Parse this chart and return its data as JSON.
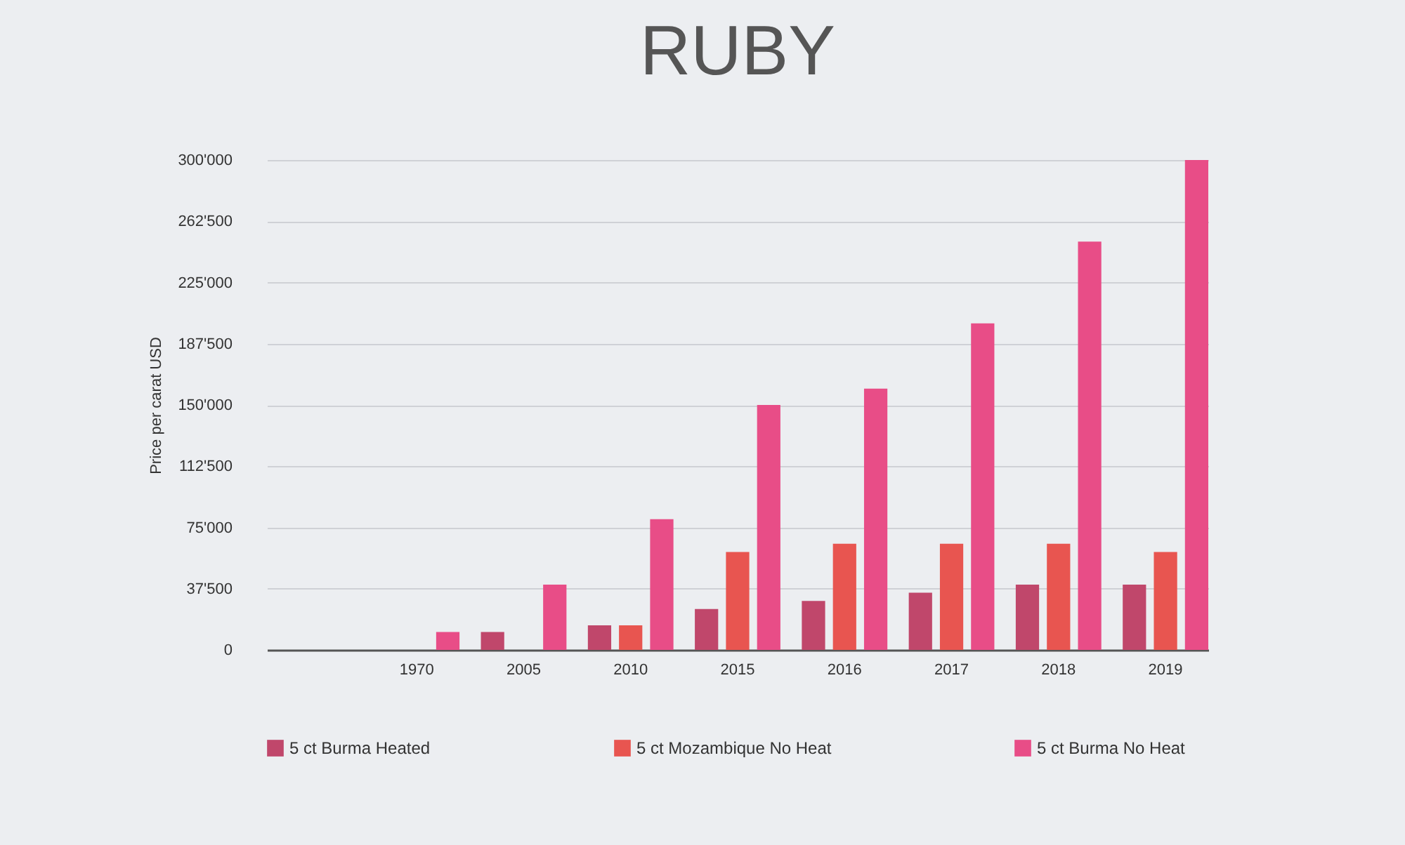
{
  "chart_data": {
    "type": "bar",
    "title": "RUBY",
    "ylabel": "Price per carat USD",
    "categories": [
      null,
      "1970",
      "2005",
      "2010",
      "2015",
      "2016",
      "2017",
      "2018",
      "2019"
    ],
    "series": [
      {
        "name": "5 ct Burma Heated",
        "color": "#c0476b",
        "values": [
          null,
          null,
          11000,
          15000,
          25000,
          30000,
          35000,
          40000,
          40000
        ]
      },
      {
        "name": "5 ct Mozambique No Heat",
        "color": "#e85550",
        "values": [
          null,
          null,
          null,
          15000,
          60000,
          65000,
          65000,
          65000,
          60000
        ]
      },
      {
        "name": "5 ct Burma No Heat",
        "color": "#e84d87",
        "values": [
          null,
          11000,
          40000,
          80000,
          150000,
          160000,
          200000,
          250000,
          300000
        ]
      }
    ],
    "ylim": [
      0,
      300000
    ],
    "yticks": [
      0,
      {
        "value": 37500,
        "label": "37'500"
      },
      {
        "value": 75000,
        "label": "75'000"
      },
      {
        "value": 112500,
        "label": "112'500"
      },
      {
        "value": 150000,
        "label": "150'000"
      },
      {
        "value": 187500,
        "label": "187'500"
      },
      {
        "value": 225000,
        "label": "225'000"
      },
      {
        "value": 262500,
        "label": "262'500"
      },
      {
        "value": 300000,
        "label": "300'000"
      }
    ],
    "grid": "y",
    "legend": "bottom"
  }
}
